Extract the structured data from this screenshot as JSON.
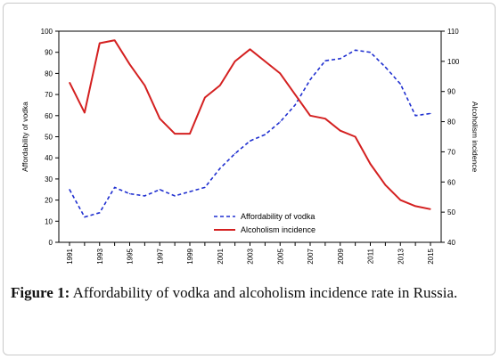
{
  "caption": {
    "label": "Figure 1:",
    "text": "Affordability of vodka and alcoholism incidence rate in Russia."
  },
  "chart_data": {
    "type": "line",
    "x": [
      "1991",
      "1992",
      "1993",
      "1994",
      "1995",
      "1996",
      "1997",
      "1998",
      "1999",
      "2000",
      "2001",
      "2002",
      "2003",
      "2004",
      "2005",
      "2006",
      "2007",
      "2008",
      "2009",
      "2010",
      "2011",
      "2012",
      "2013",
      "2014",
      "2015"
    ],
    "x_tick_labels": [
      "1991",
      "1993",
      "1995",
      "1997",
      "1999",
      "2001",
      "2003",
      "2005",
      "2007",
      "2009",
      "2011",
      "2013",
      "2015"
    ],
    "y_left": {
      "label": "Affordability of vodka",
      "ylim": [
        0,
        100
      ],
      "ticks": [
        0,
        10,
        20,
        30,
        40,
        50,
        60,
        70,
        80,
        90,
        100
      ]
    },
    "y_right": {
      "label": "Alcoholism incidence",
      "ylim": [
        40,
        110
      ],
      "ticks": [
        40,
        50,
        60,
        70,
        80,
        90,
        100,
        110
      ]
    },
    "series": [
      {
        "name": "Affordability of vodka",
        "axis": "left",
        "color": "#1f2fd0",
        "style": "dashed",
        "values": [
          25,
          12,
          14,
          26,
          23,
          22,
          25,
          22,
          24,
          26,
          35,
          42,
          48,
          51,
          57,
          65,
          77,
          86,
          87,
          91,
          90,
          83,
          75,
          60,
          61
        ]
      },
      {
        "name": "Alcoholism incidence",
        "axis": "right",
        "color": "#d42020",
        "style": "solid",
        "values": [
          93,
          83,
          106,
          107,
          99,
          92,
          81,
          76,
          76,
          88,
          92,
          100,
          104,
          100,
          96,
          89,
          82,
          81,
          77,
          75,
          66,
          59,
          54,
          52,
          51
        ]
      }
    ],
    "legend_position": "bottom-right",
    "grid": false
  }
}
